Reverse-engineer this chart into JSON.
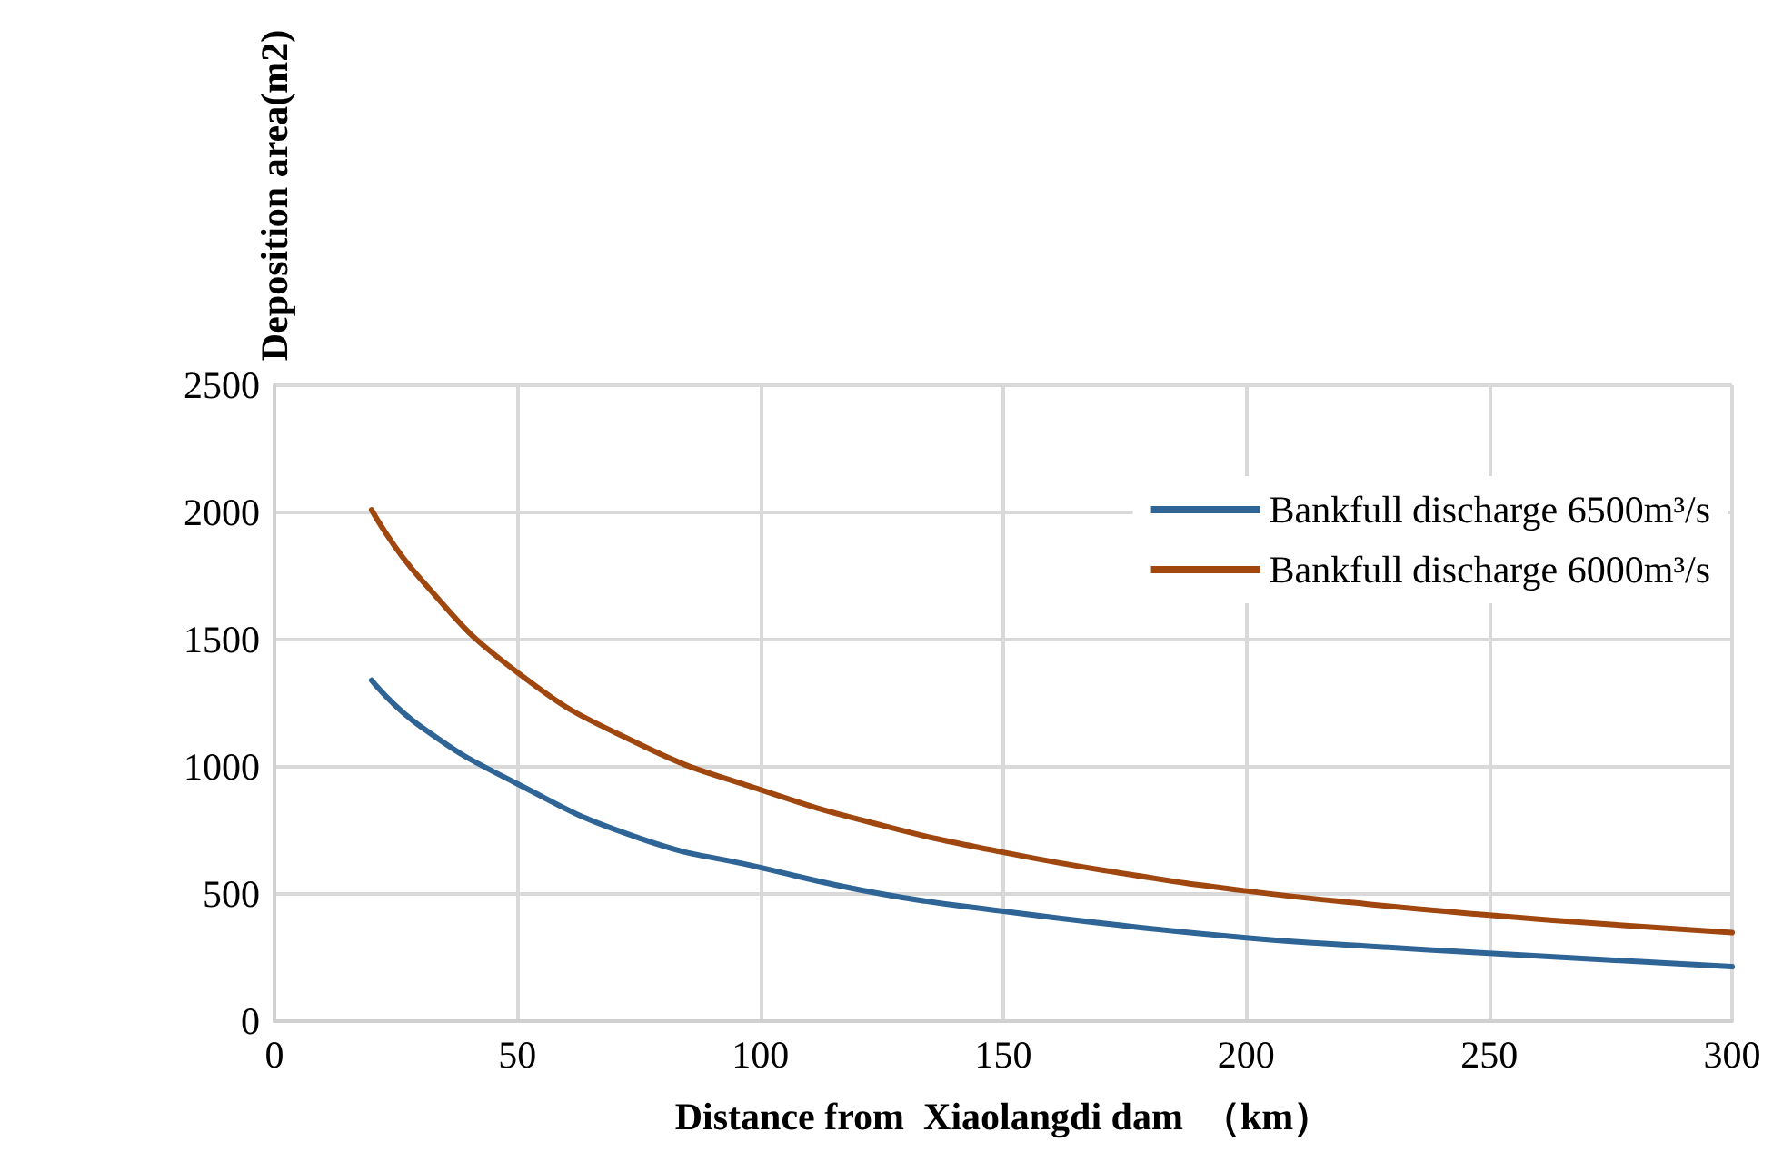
{
  "chart_data": {
    "type": "line",
    "xlabel": "Distance from  Xiaolangdi dam  （km）",
    "ylabel": "Deposition area(m2)",
    "xlim": [
      0,
      300
    ],
    "xticks": [
      0,
      50,
      100,
      150,
      200,
      250,
      300
    ],
    "ylim": [
      0,
      2500
    ],
    "yticks": [
      0,
      500,
      1000,
      1500,
      2000,
      2500
    ],
    "grid": true,
    "legend": "top right",
    "marker": "none",
    "line_style": "solid",
    "series": [
      {
        "name": "Bankfull discharge 6500m³/s",
        "color": "#2e6496",
        "x": [
          20,
          30,
          50,
          75,
          100,
          125,
          150,
          175,
          200,
          225,
          250,
          275,
          300
        ],
        "values": [
          1340,
          1160,
          933,
          720,
          604,
          500,
          432,
          375,
          328,
          295,
          267,
          240,
          214
        ]
      },
      {
        "name": "Bankfull discharge 6000m³/s",
        "color": "#a0460f",
        "x": [
          20,
          30,
          50,
          75,
          100,
          125,
          150,
          175,
          200,
          225,
          250,
          275,
          300
        ],
        "values": [
          2010,
          1740,
          1371,
          1090,
          910,
          770,
          664,
          580,
          512,
          460,
          417,
          380,
          348
        ]
      }
    ]
  }
}
